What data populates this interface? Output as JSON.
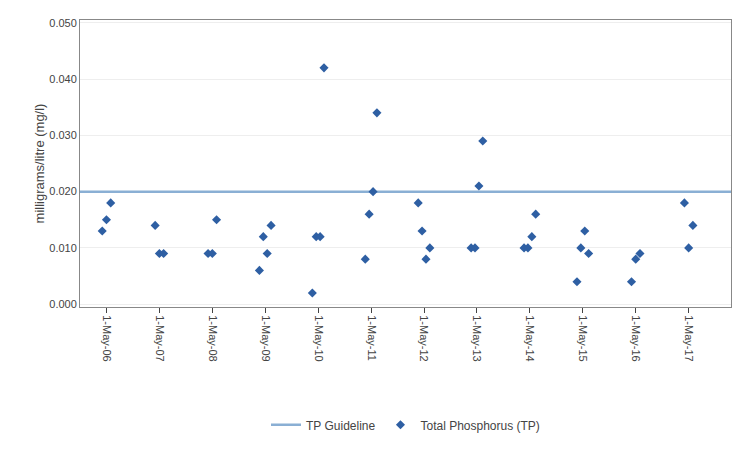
{
  "chart_data": {
    "type": "scatter",
    "y_label": "milligrams/litre (mg/l)",
    "series": [
      {
        "name": "TP Guideline",
        "type": "line",
        "line_style": "solid",
        "color": "#8AAFD4",
        "x": [
          2005.5,
          2017.8
        ],
        "values": [
          0.02,
          0.02
        ]
      },
      {
        "name": "Total Phosphorus (TP)",
        "type": "scatter",
        "marker": "diamond",
        "color": "#2E5FA3",
        "x": [
          2006,
          2006,
          2006,
          2007,
          2007,
          2007,
          2008,
          2008,
          2008,
          2009,
          2009,
          2009,
          2009,
          2010,
          2010,
          2010,
          2010,
          2011,
          2011,
          2011,
          2011,
          2012,
          2012,
          2012,
          2012,
          2013,
          2013,
          2013,
          2013,
          2014,
          2014,
          2014,
          2014,
          2015,
          2015,
          2015,
          2015,
          2016,
          2016,
          2016,
          2017,
          2017,
          2017
        ],
        "values": [
          0.013,
          0.015,
          0.018,
          0.014,
          0.009,
          0.009,
          0.009,
          0.009,
          0.015,
          0.006,
          0.012,
          0.009,
          0.014,
          0.002,
          0.012,
          0.012,
          0.042,
          0.008,
          0.016,
          0.02,
          0.034,
          0.018,
          0.013,
          0.008,
          0.01,
          0.01,
          0.01,
          0.021,
          0.029,
          0.01,
          0.01,
          0.012,
          0.016,
          0.004,
          0.01,
          0.013,
          0.009,
          0.004,
          0.008,
          0.009,
          0.018,
          0.01,
          0.014
        ]
      }
    ],
    "xlim": [
      2005.5,
      2017.8
    ],
    "xticks": [
      {
        "value": 2006,
        "label": "1-May-06"
      },
      {
        "value": 2007,
        "label": "1-May-07"
      },
      {
        "value": 2008,
        "label": "1-May-08"
      },
      {
        "value": 2009,
        "label": "1-May-09"
      },
      {
        "value": 2010,
        "label": "1-May-10"
      },
      {
        "value": 2011,
        "label": "1-May-11"
      },
      {
        "value": 2012,
        "label": "1-May-12"
      },
      {
        "value": 2013,
        "label": "1-May-13"
      },
      {
        "value": 2014,
        "label": "1-May-14"
      },
      {
        "value": 2015,
        "label": "1-May-15"
      },
      {
        "value": 2016,
        "label": "1-May-16"
      },
      {
        "value": 2017,
        "label": "1-May-17"
      }
    ],
    "ylim": [
      -0.0005,
      0.0505
    ],
    "yticks": [
      {
        "value": 0.0,
        "label": "0.000"
      },
      {
        "value": 0.01,
        "label": "0.010"
      },
      {
        "value": 0.02,
        "label": "0.020"
      },
      {
        "value": 0.03,
        "label": "0.030"
      },
      {
        "value": 0.04,
        "label": "0.040"
      },
      {
        "value": 0.05,
        "label": "0.050"
      }
    ],
    "grid": "y",
    "legend": "bottom"
  }
}
